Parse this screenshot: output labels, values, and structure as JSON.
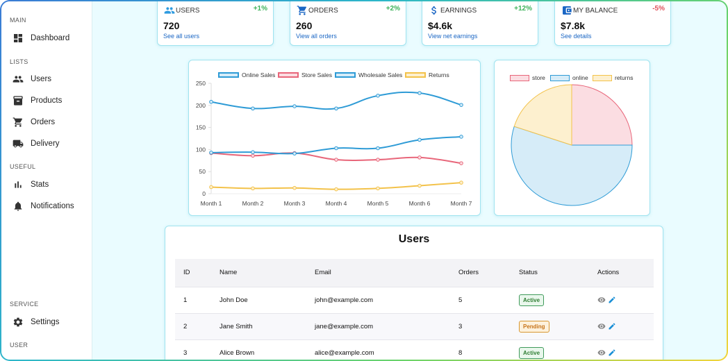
{
  "sidebar": {
    "sections": {
      "main": "MAIN",
      "lists": "LISTS",
      "useful": "USEFUL",
      "service": "SERVICE",
      "user": "USER"
    },
    "items": {
      "dashboard": "Dashboard",
      "users": "Users",
      "products": "Products",
      "orders": "Orders",
      "delivery": "Delivery",
      "stats": "Stats",
      "notifications": "Notifications",
      "settings": "Settings"
    }
  },
  "widgets": [
    {
      "title": "USERS",
      "pct": "+1%",
      "value": "720",
      "link": "See all users",
      "icon": "people-icon",
      "color": "#2e9be0"
    },
    {
      "title": "ORDERS",
      "pct": "+2%",
      "value": "260",
      "link": "View all orders",
      "icon": "cart-icon",
      "color": "#1a66c4"
    },
    {
      "title": "EARNINGS",
      "pct": "+12%",
      "value": "$4.6k",
      "link": "View net earnings",
      "icon": "dollar-icon",
      "color": "#1a66c4"
    },
    {
      "title": "MY BALANCE",
      "pct": "-5%",
      "value": "$7.8k",
      "link": "See details",
      "icon": "wallet-icon",
      "color": "#1a66c4"
    }
  ],
  "colors": {
    "positive": "#3cb25a",
    "negative": "#e0505a"
  },
  "chart_data": [
    {
      "type": "line",
      "categories": [
        "Month 1",
        "Month 2",
        "Month 3",
        "Month 4",
        "Month 5",
        "Month 6",
        "Month 7"
      ],
      "ylim": [
        0,
        250
      ],
      "yticks": [
        0,
        50,
        100,
        150,
        200,
        250
      ],
      "series": [
        {
          "name": "Online Sales",
          "values": [
            208,
            193,
            198,
            193,
            222,
            228,
            201
          ],
          "color": "#2e9bd6",
          "fill": "#d6ecf8"
        },
        {
          "name": "Store Sales",
          "values": [
            92,
            86,
            92,
            77,
            77,
            82,
            69
          ],
          "color": "#e8667a",
          "fill": "#fbdde2"
        },
        {
          "name": "Wholesale Sales",
          "values": [
            93,
            94,
            91,
            103,
            103,
            122,
            129
          ],
          "color": "#2e9bd6",
          "fill": "#d6ecf8"
        },
        {
          "name": "Returns",
          "values": [
            15,
            12,
            13,
            10,
            12,
            18,
            25
          ],
          "color": "#f3c24a",
          "fill": "#fdf0cf"
        }
      ]
    },
    {
      "type": "pie",
      "labels": [
        "store",
        "online",
        "returns"
      ],
      "values": [
        25,
        55,
        20
      ],
      "colors": [
        "#fbdde2",
        "#d6ecf8",
        "#fdf0cf"
      ],
      "borders": [
        "#e8667a",
        "#2e9bd6",
        "#f3c24a"
      ]
    }
  ],
  "users_table": {
    "title": "Users",
    "headers": [
      "ID",
      "Name",
      "Email",
      "Orders",
      "Status",
      "Actions"
    ],
    "rows": [
      {
        "id": "1",
        "name": "John Doe",
        "email": "john@example.com",
        "orders": "5",
        "status": "Active",
        "status_type": "active"
      },
      {
        "id": "2",
        "name": "Jane Smith",
        "email": "jane@example.com",
        "orders": "3",
        "status": "Pending",
        "status_type": "pending"
      },
      {
        "id": "3",
        "name": "Alice Brown",
        "email": "alice@example.com",
        "orders": "8",
        "status": "Active",
        "status_type": "active"
      }
    ]
  }
}
